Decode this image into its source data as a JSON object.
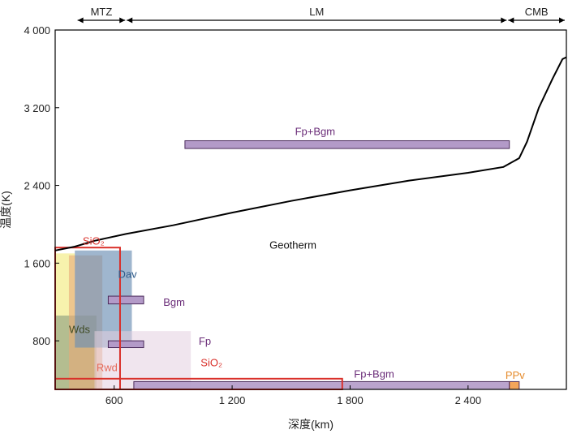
{
  "chart_data": {
    "type": "mixed",
    "xlabel": "深度(km)",
    "ylabel": "温度(K)",
    "xlim": [
      300,
      2900
    ],
    "ylim": [
      300,
      4000
    ],
    "x_ticks": [
      {
        "value": 600,
        "label": "600"
      },
      {
        "value": 1200,
        "label": "1 200"
      },
      {
        "value": 1800,
        "label": "1 800"
      },
      {
        "value": 2400,
        "label": "2 400"
      }
    ],
    "y_ticks": [
      {
        "value": 800,
        "label": "800"
      },
      {
        "value": 1600,
        "label": "1 600"
      },
      {
        "value": 2400,
        "label": "2 400"
      },
      {
        "value": 3200,
        "label": "3 200"
      },
      {
        "value": 4000,
        "label": "4 000"
      }
    ],
    "regions": [
      {
        "label": "MTZ",
        "from": 410,
        "to": 660
      },
      {
        "label": "LM",
        "from": 660,
        "to": 2600
      },
      {
        "label": "CMB",
        "from": 2600,
        "to": 2900
      }
    ],
    "geotherm": {
      "label": "Geotherm",
      "points": [
        [
          300,
          1730
        ],
        [
          400,
          1770
        ],
        [
          500,
          1830
        ],
        [
          660,
          1900
        ],
        [
          900,
          1990
        ],
        [
          1200,
          2120
        ],
        [
          1500,
          2240
        ],
        [
          1800,
          2350
        ],
        [
          2100,
          2450
        ],
        [
          2400,
          2530
        ],
        [
          2580,
          2590
        ],
        [
          2660,
          2680
        ],
        [
          2700,
          2850
        ],
        [
          2760,
          3200
        ],
        [
          2830,
          3500
        ],
        [
          2880,
          3700
        ],
        [
          2900,
          3720
        ]
      ]
    },
    "boxes": [
      {
        "label": "",
        "x": [
          300,
          400
        ],
        "y": [
          1060,
          1700
        ],
        "fill": "#f3ed8a",
        "opacity": 0.7
      },
      {
        "label": "Wds",
        "x": [
          300,
          510
        ],
        "y": [
          300,
          1060
        ],
        "fill": "#8c9a55",
        "opacity": 0.65
      },
      {
        "label": "Rwd",
        "x": [
          370,
          540
        ],
        "y": [
          300,
          1680
        ],
        "fill": "#e8a878",
        "opacity": 0.6
      },
      {
        "label": "Dav",
        "x": [
          400,
          690
        ],
        "y": [
          730,
          1730
        ],
        "fill": "#6b8fb3",
        "opacity": 0.65
      },
      {
        "label": "Fp",
        "x": [
          500,
          990
        ],
        "y": [
          300,
          900
        ],
        "fill": "#e3cfe0",
        "opacity": 0.55
      },
      {
        "label": "Fp+Bgm",
        "x": [
          960,
          2610
        ],
        "y": [
          2780,
          2860
        ],
        "fill": "#b39ac8",
        "opacity": 1
      },
      {
        "label": "Bgm",
        "x": [
          570,
          750
        ],
        "y": [
          1180,
          1260
        ],
        "fill": "#b39ac8",
        "opacity": 1
      },
      {
        "label": "",
        "x": [
          570,
          750
        ],
        "y": [
          730,
          800
        ],
        "fill": "#b39ac8",
        "opacity": 1
      },
      {
        "label": "Fp+Bgm",
        "x": [
          700,
          2610
        ],
        "y": [
          300,
          380
        ],
        "fill": "#b39ac8",
        "opacity": 0.9
      },
      {
        "label": "PPv",
        "x": [
          2610,
          2660
        ],
        "y": [
          300,
          380
        ],
        "fill": "#f3a55a",
        "opacity": 1
      }
    ],
    "outlines": [
      {
        "label": "SiO₂",
        "x": [
          300,
          630
        ],
        "y": [
          300,
          1760
        ],
        "stroke": "#d9302a"
      },
      {
        "label": "SiO₂",
        "x": [
          300,
          1760
        ],
        "y": [
          300,
          410
        ],
        "stroke": "#d9302a"
      }
    ],
    "annotations": [
      {
        "text": "Geotherm",
        "x": 1390,
        "y": 1750,
        "color": "#111111"
      },
      {
        "text": "Fp+Bgm",
        "x": 1520,
        "y": 2920,
        "color": "#6a2c78"
      },
      {
        "text": "Fp+Bgm",
        "x": 1820,
        "y": 420,
        "color": "#6a2c78"
      },
      {
        "text": "SiO₂",
        "x": 440,
        "y": 1790,
        "color": "#d9302a"
      },
      {
        "text": "SiO₂",
        "x": 1040,
        "y": 540,
        "color": "#d9302a"
      },
      {
        "text": "Dav",
        "x": 620,
        "y": 1450,
        "color": "#2e5b8a"
      },
      {
        "text": "Bgm",
        "x": 850,
        "y": 1160,
        "color": "#6a2c78"
      },
      {
        "text": "Fp",
        "x": 1030,
        "y": 760,
        "color": "#6a2c78"
      },
      {
        "text": "Wds",
        "x": 370,
        "y": 880,
        "color": "#3e4a22"
      },
      {
        "text": "Rwd",
        "x": 510,
        "y": 490,
        "color": "#e56a5a"
      },
      {
        "text": "PPv",
        "x": 2590,
        "y": 410,
        "color": "#e58a2a"
      }
    ]
  }
}
